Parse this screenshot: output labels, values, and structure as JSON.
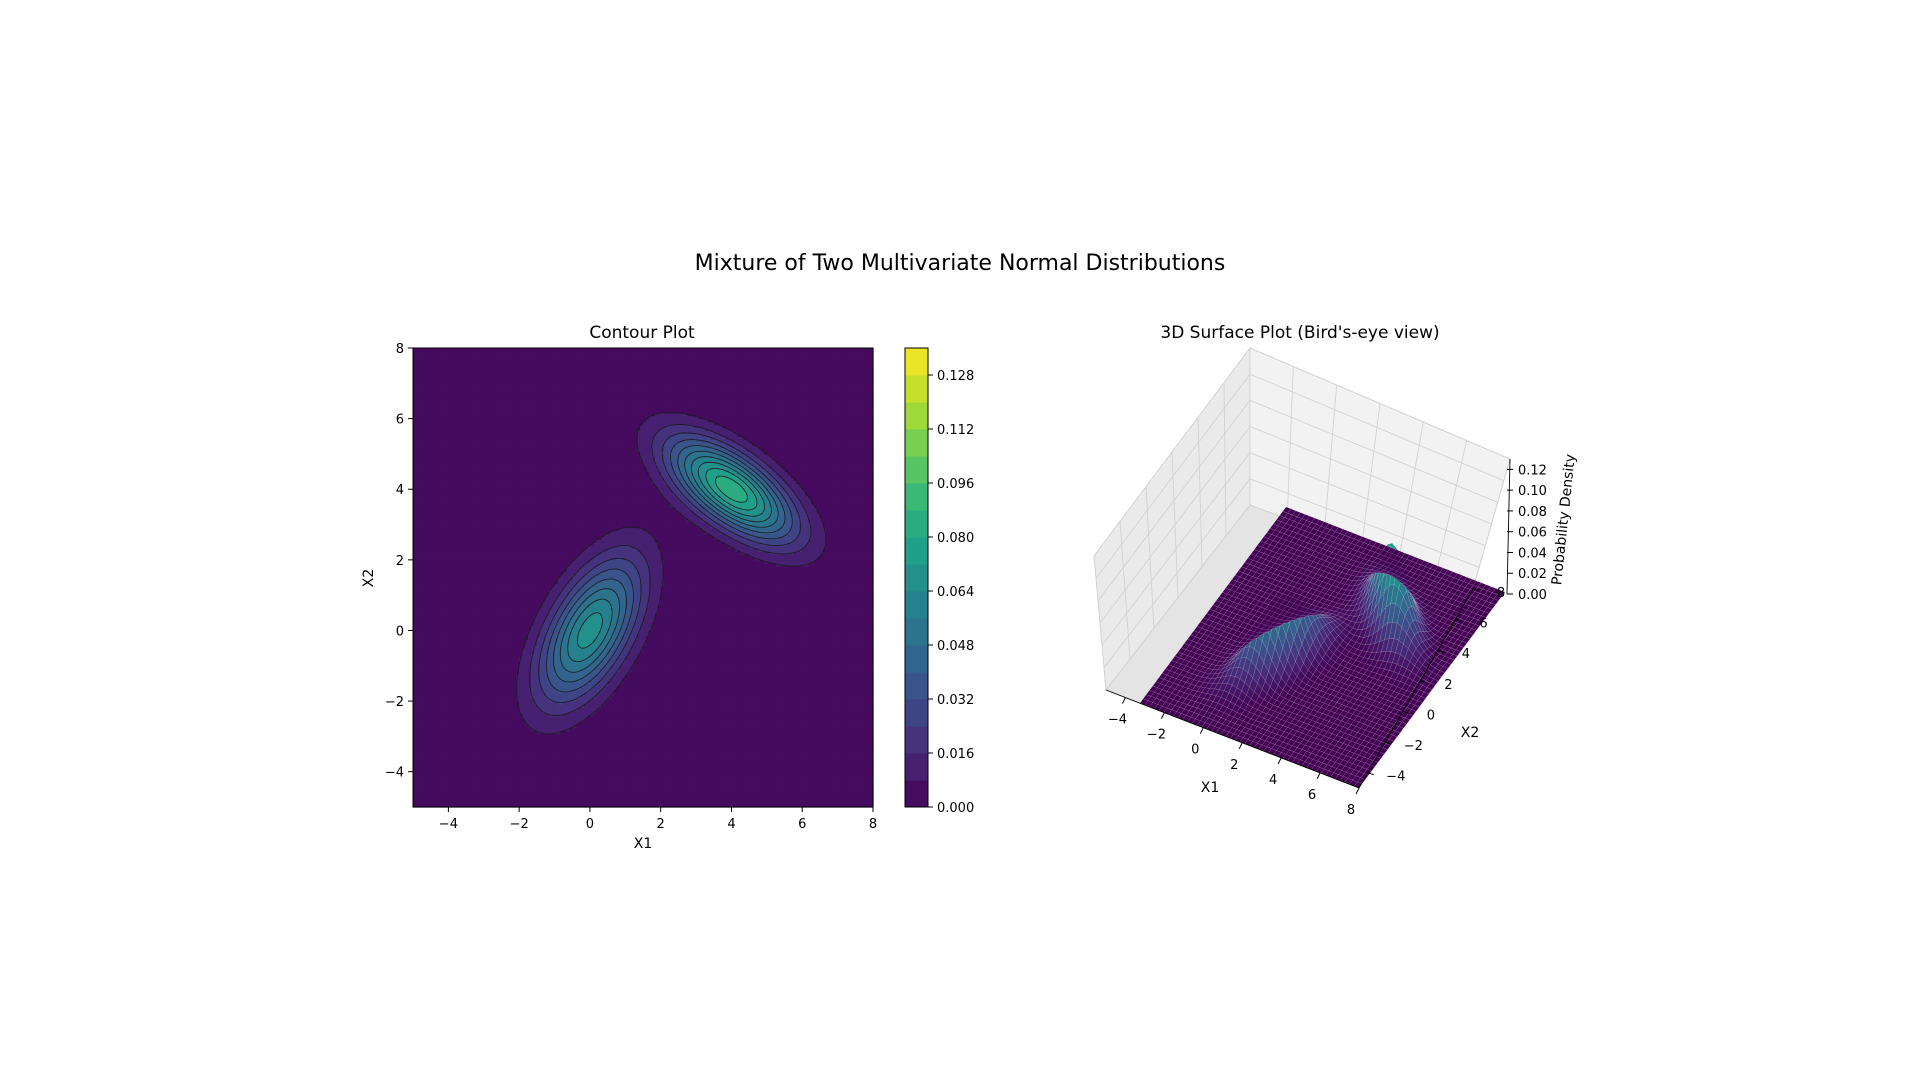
{
  "figure": {
    "suptitle": "Mixture of Two Multivariate Normal Distributions"
  },
  "chart_data": [
    {
      "type": "contour",
      "title": "Contour Plot",
      "xlabel": "X1",
      "ylabel": "X2",
      "xlim": [
        -5,
        8
      ],
      "ylim": [
        -5,
        8
      ],
      "xticks": [
        "−4",
        "−2",
        "0",
        "2",
        "4",
        "6",
        "8"
      ],
      "yticks": [
        "−4",
        "−2",
        "0",
        "2",
        "4",
        "6",
        "8"
      ],
      "components": [
        {
          "mean": [
            0,
            0
          ],
          "cov": [
            [
              1,
              0.8
            ],
            [
              0.8,
              2
            ]
          ],
          "weight": 0.5
        },
        {
          "mean": [
            4,
            4
          ],
          "cov": [
            [
              1.5,
              -0.8
            ],
            [
              -0.8,
              1
            ]
          ],
          "weight": 0.5
        }
      ],
      "levels_max": 0.136,
      "levels_step": 0.008,
      "colorbar": {
        "range": [
          0,
          0.136
        ],
        "ticks": [
          "0.000",
          "0.016",
          "0.032",
          "0.048",
          "0.064",
          "0.080",
          "0.096",
          "0.112",
          "0.128"
        ]
      },
      "colormap": [
        "#440154",
        "#482878",
        "#3e4989",
        "#31688e",
        "#26828e",
        "#1f9e89",
        "#35b779",
        "#6ece58",
        "#b5de2b",
        "#fde725"
      ]
    },
    {
      "type": "surface3d",
      "title": "3D Surface Plot (Bird's-eye view)",
      "xlabel": "X1",
      "ylabel": "X2",
      "zlabel": "Probability Density",
      "xlim": [
        -5,
        8
      ],
      "ylim": [
        -5,
        8
      ],
      "zlim": [
        0,
        0.13
      ],
      "xticks": [
        "−4",
        "−2",
        "0",
        "2",
        "4",
        "6",
        "8"
      ],
      "yticks": [
        "−4",
        "−2",
        "0",
        "2",
        "4",
        "6",
        "8"
      ],
      "zticks": [
        "0.00",
        "0.02",
        "0.04",
        "0.06",
        "0.08",
        "0.10",
        "0.12"
      ]
    }
  ]
}
